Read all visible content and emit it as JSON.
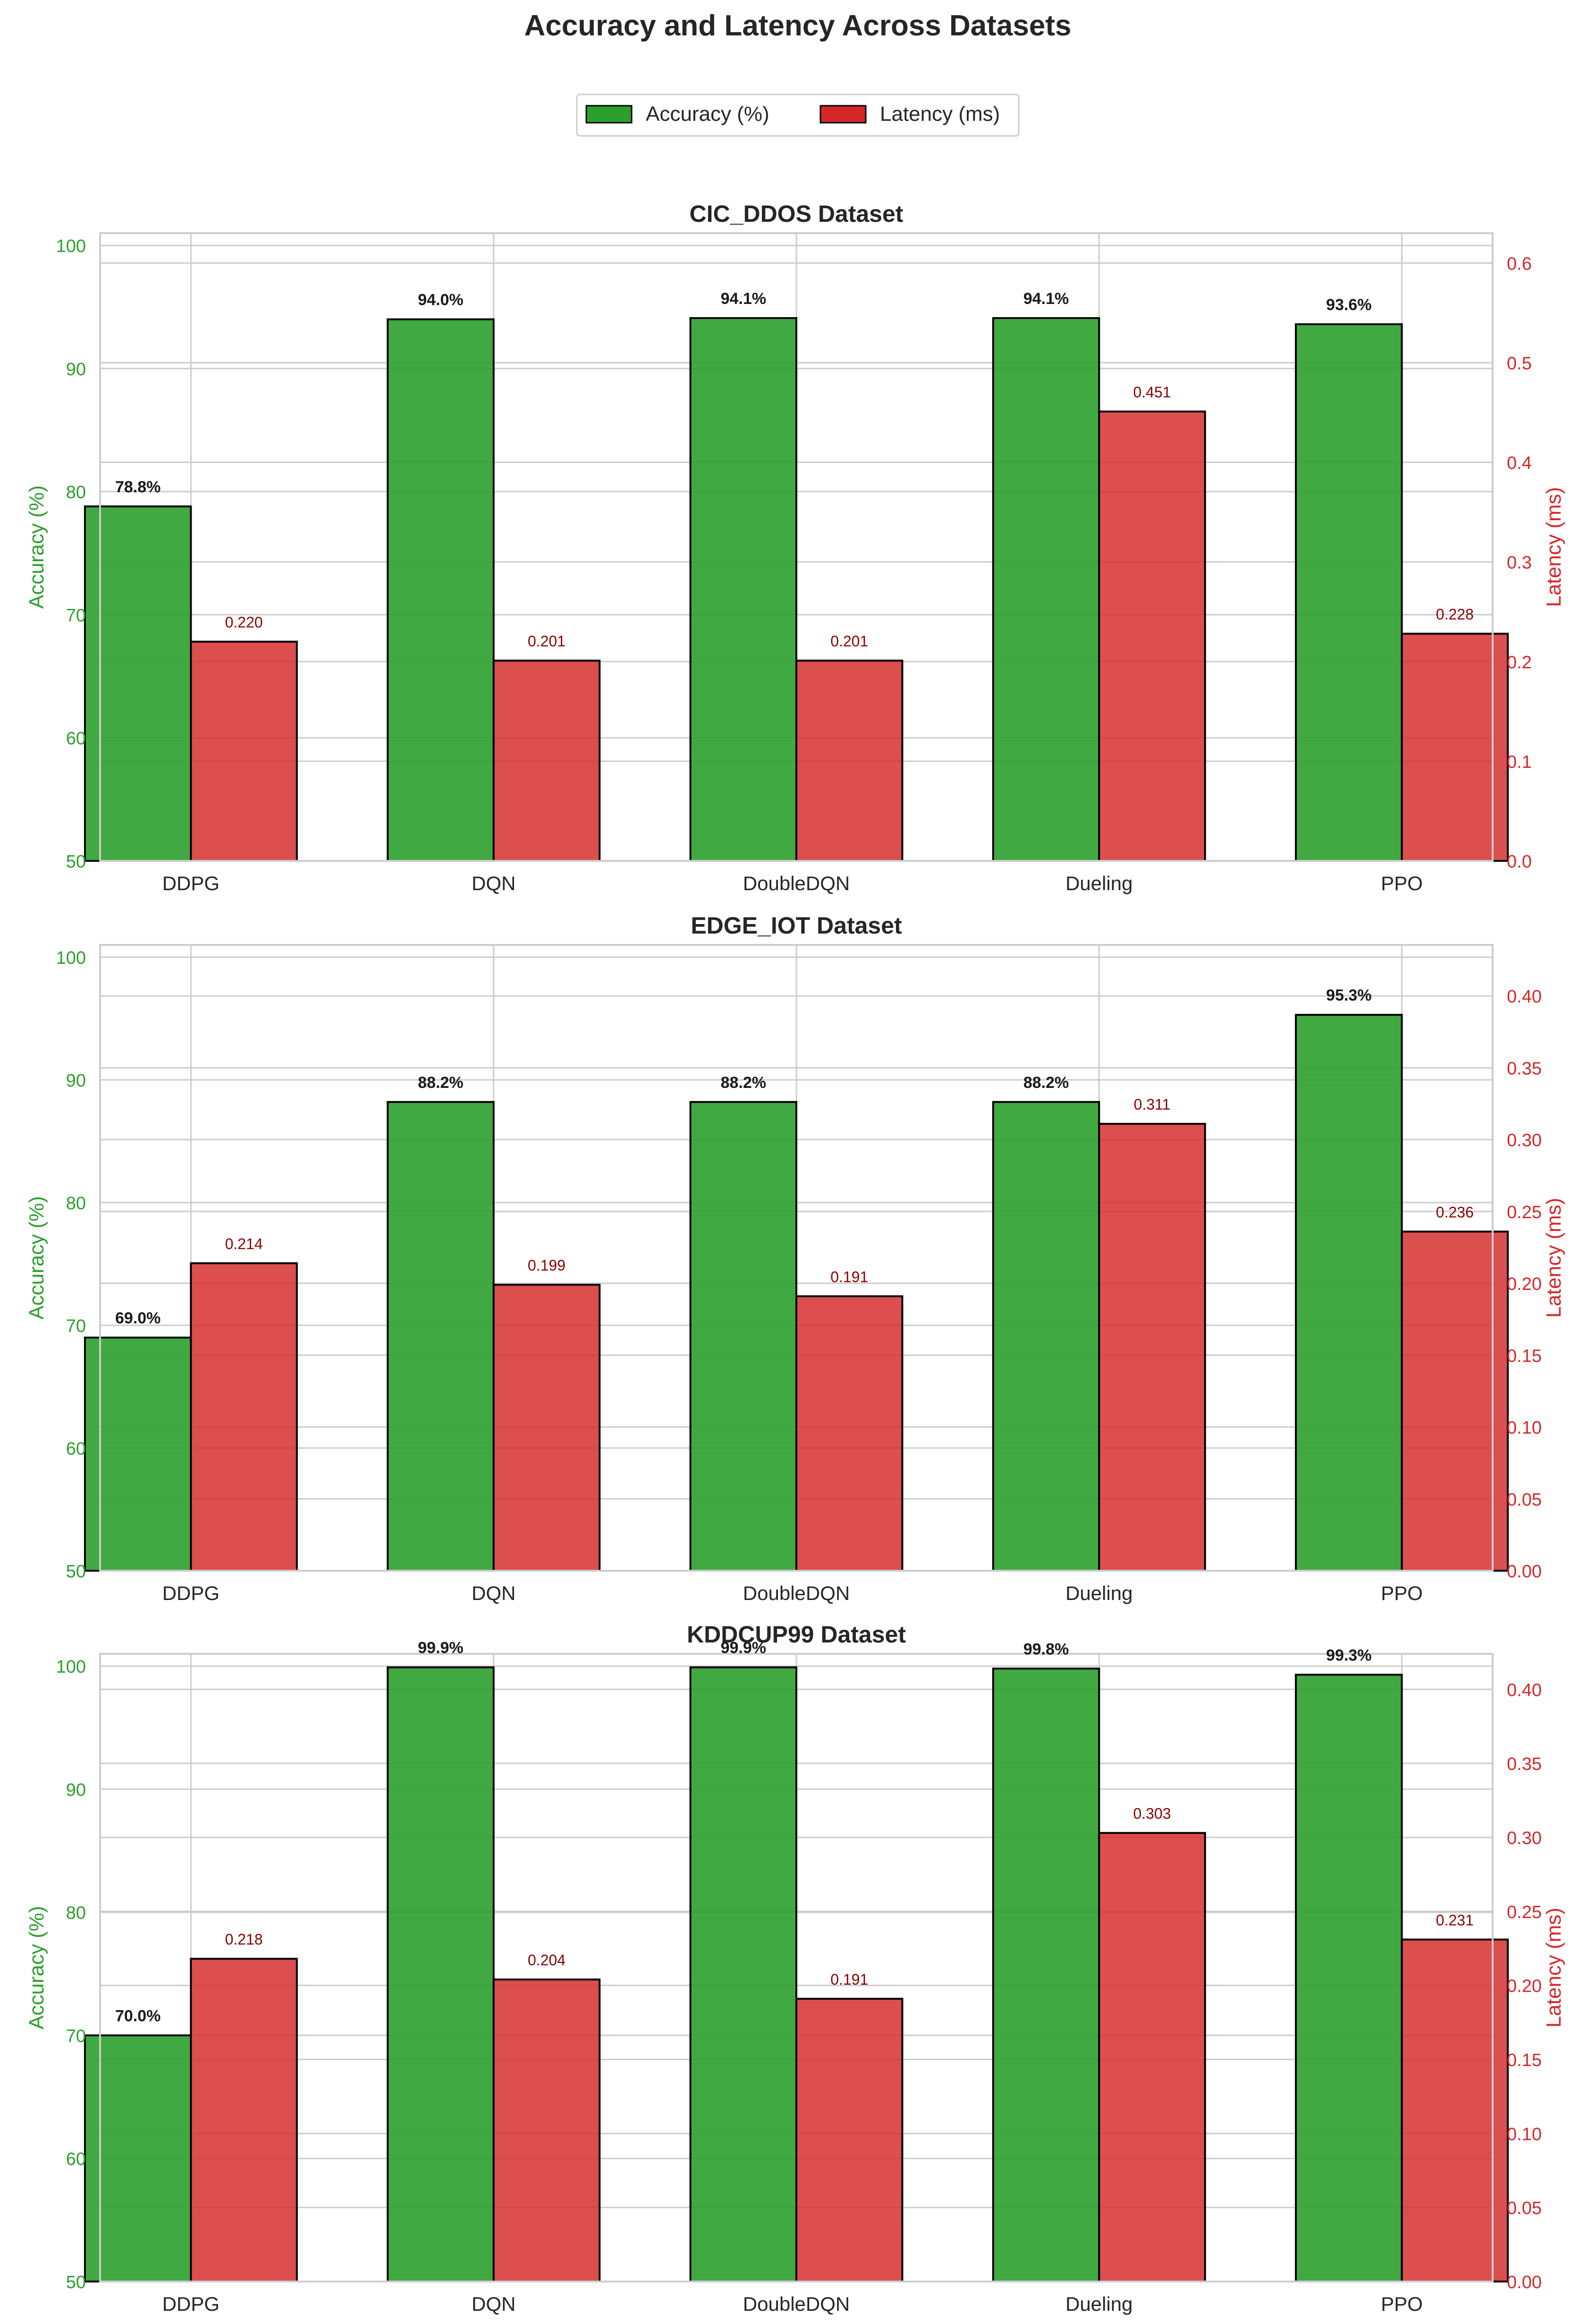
{
  "colors": {
    "accuracy": "#2ca02c",
    "latency": "#d62728",
    "edge": "#000000",
    "grid": "#cccccc",
    "label_dark": "#1a1a1a",
    "latency_label": "#8b0000"
  },
  "figure": {
    "title": "Accuracy and Latency Across Datasets",
    "legend": [
      "Accuracy (%)",
      "Latency (ms)"
    ]
  },
  "chart_data": [
    {
      "type": "bar",
      "title": "CIC_DDOS Dataset",
      "categories": [
        "DDPG",
        "DQN",
        "DoubleDQN",
        "Dueling",
        "PPO"
      ],
      "series": [
        {
          "name": "Accuracy (%)",
          "axis": "left",
          "values": [
            78.8,
            94.0,
            94.1,
            94.1,
            93.6
          ],
          "labels": [
            "78.8%",
            "94.0%",
            "94.1%",
            "94.1%",
            "93.6%"
          ]
        },
        {
          "name": "Latency (ms)",
          "axis": "right",
          "values": [
            0.22,
            0.201,
            0.201,
            0.451,
            0.228
          ],
          "labels": [
            "0.220",
            "0.201",
            "0.201",
            "0.451",
            "0.228"
          ]
        }
      ],
      "ylabel": "Accuracy (%)",
      "y2label": "Latency (ms)",
      "ylim": [
        50,
        101
      ],
      "y2lim": [
        0,
        0.63
      ],
      "yticks": [
        50,
        60,
        70,
        80,
        90,
        100
      ],
      "y2ticks": [
        0.0,
        0.1,
        0.2,
        0.3,
        0.4,
        0.5,
        0.6
      ],
      "y2ticklabels": [
        "0.0",
        "0.1",
        "0.2",
        "0.3",
        "0.4",
        "0.5",
        "0.6"
      ]
    },
    {
      "type": "bar",
      "title": "EDGE_IOT Dataset",
      "categories": [
        "DDPG",
        "DQN",
        "DoubleDQN",
        "Dueling",
        "PPO"
      ],
      "series": [
        {
          "name": "Accuracy (%)",
          "axis": "left",
          "values": [
            69.0,
            88.2,
            88.2,
            88.2,
            95.3
          ],
          "labels": [
            "69.0%",
            "88.2%",
            "88.2%",
            "88.2%",
            "95.3%"
          ]
        },
        {
          "name": "Latency (ms)",
          "axis": "right",
          "values": [
            0.214,
            0.199,
            0.191,
            0.311,
            0.236
          ],
          "labels": [
            "0.214",
            "0.199",
            "0.191",
            "0.311",
            "0.236"
          ]
        }
      ],
      "ylabel": "Accuracy (%)",
      "y2label": "Latency (ms)",
      "ylim": [
        50,
        101
      ],
      "y2lim": [
        0,
        0.4355
      ],
      "yticks": [
        50,
        60,
        70,
        80,
        90,
        100
      ],
      "y2ticks": [
        0.0,
        0.05,
        0.1,
        0.15,
        0.2,
        0.25,
        0.3,
        0.35,
        0.4
      ],
      "y2ticklabels": [
        "0.00",
        "0.05",
        "0.10",
        "0.15",
        "0.20",
        "0.25",
        "0.30",
        "0.35",
        "0.40"
      ]
    },
    {
      "type": "bar",
      "title": "KDDCUP99 Dataset",
      "categories": [
        "DDPG",
        "DQN",
        "DoubleDQN",
        "Dueling",
        "PPO"
      ],
      "series": [
        {
          "name": "Accuracy (%)",
          "axis": "left",
          "values": [
            70.0,
            99.9,
            99.9,
            99.8,
            99.3
          ],
          "labels": [
            "70.0%",
            "99.9%",
            "99.9%",
            "99.8%",
            "99.3%"
          ]
        },
        {
          "name": "Latency (ms)",
          "axis": "right",
          "values": [
            0.218,
            0.204,
            0.191,
            0.303,
            0.231
          ],
          "labels": [
            "0.218",
            "0.204",
            "0.191",
            "0.303",
            "0.231"
          ]
        }
      ],
      "ylabel": "Accuracy (%)",
      "y2label": "Latency (ms)",
      "ylim": [
        50,
        101
      ],
      "y2lim": [
        0,
        0.424
      ],
      "yticks": [
        50,
        60,
        70,
        80,
        90,
        100
      ],
      "y2ticks": [
        0.0,
        0.05,
        0.1,
        0.15,
        0.2,
        0.25,
        0.3,
        0.35,
        0.4
      ],
      "y2ticklabels": [
        "0.00",
        "0.05",
        "0.10",
        "0.15",
        "0.20",
        "0.25",
        "0.30",
        "0.35",
        "0.40"
      ]
    }
  ]
}
